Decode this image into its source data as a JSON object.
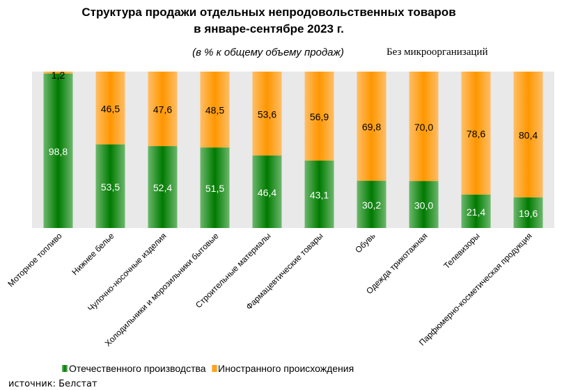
{
  "chart_data": {
    "type": "bar",
    "stacked": true,
    "title_line1": "Структура продажи отдельных непродовольственных товаров",
    "title_line2": "в январе-сентябре 2023 г.",
    "subtitle": "(в % к общему объему продаж)",
    "note": "Без микроорганизаций",
    "source": "источник: Белстат",
    "ylim": [
      0,
      100
    ],
    "grid": false,
    "legend_placement": "bottom",
    "categories": [
      "Моторное топливо",
      "Нижнее белье",
      "Чулочно-носочные изделия",
      "Холодильники и морозильники бытовые",
      "Строительные материалы",
      "Фармацевтические товары",
      "Обувь",
      "Одежда трикотажная",
      "Телевизоры",
      "Парфюмерно-косметическая продукция"
    ],
    "series": [
      {
        "name": "Отечественного производства",
        "color": "#0a7d0a",
        "values": [
          98.8,
          53.5,
          52.4,
          51.5,
          46.4,
          43.1,
          30.2,
          30.0,
          21.4,
          19.6
        ],
        "labels": [
          "98,8",
          "53,5",
          "52,4",
          "51,5",
          "46,4",
          "43,1",
          "30,2",
          "30,0",
          "21,4",
          "19,6"
        ]
      },
      {
        "name": "Иностранного происхождения",
        "color": "#ff9900",
        "values": [
          1.2,
          46.5,
          47.6,
          48.5,
          53.6,
          56.9,
          69.8,
          70.0,
          78.6,
          80.4
        ],
        "labels": [
          "1,2",
          "46,5",
          "47,6",
          "48,5",
          "53,6",
          "56,9",
          "69,8",
          "70,0",
          "78,6",
          "80,4"
        ]
      }
    ]
  }
}
